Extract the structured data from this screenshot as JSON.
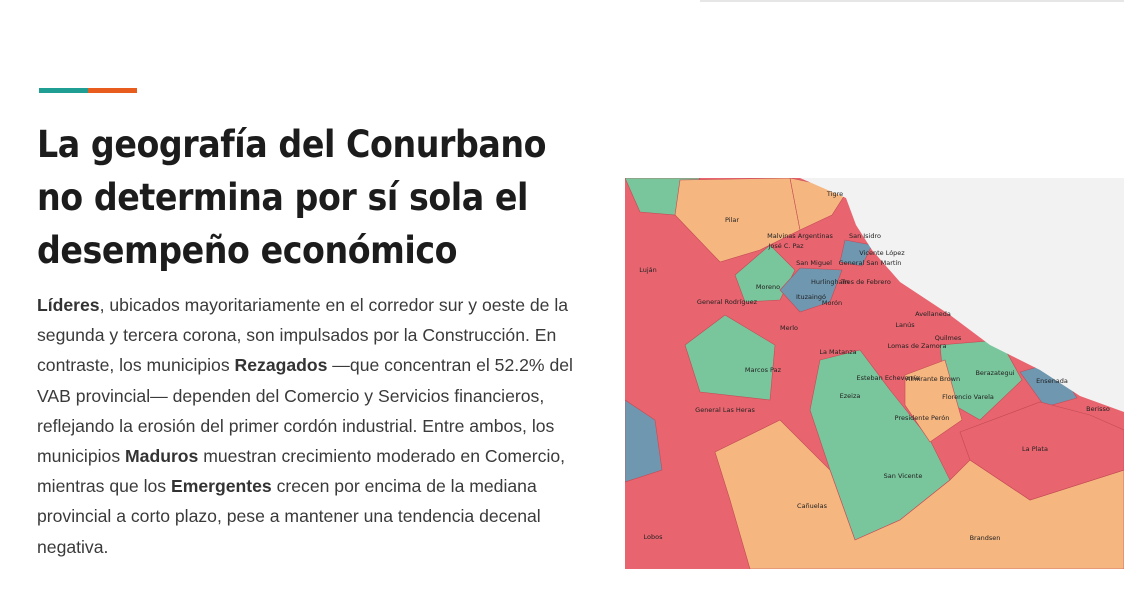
{
  "heading": {
    "lines": [
      "La geografía del Conurbano",
      "no determina por sí sola el",
      "desempeño económico"
    ]
  },
  "paragraph": {
    "parts": [
      {
        "text": "Líderes",
        "bold": true
      },
      {
        "text": ", ubicados mayoritariamente en el corredor sur y oeste de la segunda y tercera corona, son impulsados por la Construcción. En contraste, los municipios ",
        "bold": false
      },
      {
        "text": "Rezagados",
        "bold": true
      },
      {
        "text": " —que concentran el 52.2% del VAB provincial— dependen del Comercio y Servicios financieros, reflejando la erosión del primer cordón industrial. Entre ambos, los municipios ",
        "bold": false
      },
      {
        "text": "Maduros",
        "bold": true
      },
      {
        "text": " muestran crecimiento moderado en Comercio, mientras que los ",
        "bold": false
      },
      {
        "text": "Emergentes",
        "bold": true
      },
      {
        "text": " crecen por encima de la mediana provincial a corto plazo, pese a mantener una tendencia decenal negativa.",
        "bold": false
      }
    ]
  },
  "map": {
    "labels": [
      "Tigre",
      "Pilar",
      "Malvinas Argentinas",
      "San Isidro",
      "José C. Paz",
      "Vicente López",
      "San Miguel",
      "General San Martín",
      "Luján",
      "Hurlingham",
      "Tres de Febrero",
      "Moreno",
      "Ituzaingó",
      "Morón",
      "General Rodríguez",
      "Avellaneda",
      "Lanús",
      "Merlo",
      "Quilmes",
      "Lomas de Zamora",
      "La Matanza",
      "Marcos Paz",
      "Esteban Echeverría",
      "Almirante Brown",
      "Berazategui",
      "Ensenada",
      "Florencio Varela",
      "Ezeiza",
      "General Las Heras",
      "Presidente Perón",
      "Berisso",
      "La Plata",
      "San Vicente",
      "Cañuelas",
      "Lobos",
      "Brandsen"
    ]
  }
}
